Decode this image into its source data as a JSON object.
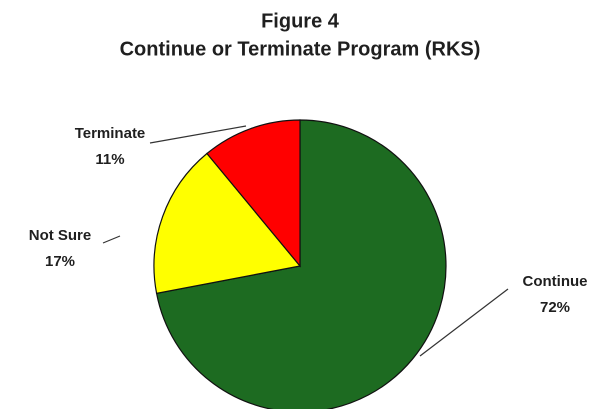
{
  "chart_data": {
    "type": "pie",
    "title": "Figure 4",
    "subtitle": "Continue or Terminate Program (RKS)",
    "categories": [
      "Continue",
      "Not Sure",
      "Terminate"
    ],
    "values": [
      72,
      17,
      11
    ],
    "value_labels": [
      "72%",
      "17%",
      "11%"
    ],
    "colors": [
      "#1d6b21",
      "#ffff00",
      "#ff0000"
    ]
  }
}
